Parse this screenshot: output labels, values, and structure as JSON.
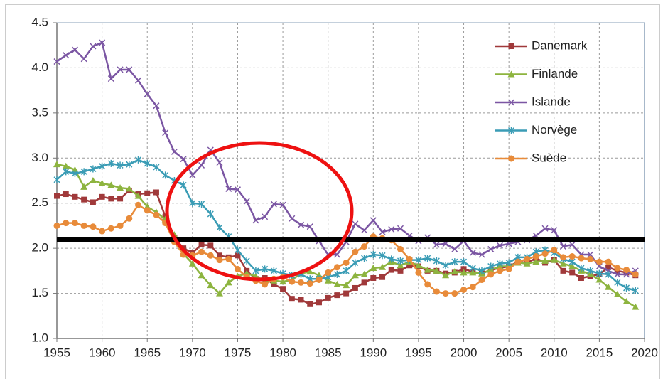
{
  "chart_data": {
    "type": "line",
    "x": [
      1955,
      1956,
      1957,
      1958,
      1959,
      1960,
      1961,
      1962,
      1963,
      1964,
      1965,
      1966,
      1967,
      1968,
      1969,
      1970,
      1971,
      1972,
      1973,
      1974,
      1975,
      1976,
      1977,
      1978,
      1979,
      1980,
      1981,
      1982,
      1983,
      1984,
      1985,
      1986,
      1987,
      1988,
      1989,
      1990,
      1991,
      1992,
      1993,
      1994,
      1995,
      1996,
      1997,
      1998,
      1999,
      2000,
      2001,
      2002,
      2003,
      2004,
      2005,
      2006,
      2007,
      2008,
      2009,
      2010,
      2011,
      2012,
      2013,
      2014,
      2015,
      2016,
      2017,
      2018,
      2019
    ],
    "series": [
      {
        "name": "Danemark",
        "color": "#a0393a",
        "marker": "square",
        "values": [
          2.58,
          2.6,
          2.57,
          2.54,
          2.51,
          2.57,
          2.55,
          2.55,
          2.64,
          2.6,
          2.61,
          2.62,
          2.35,
          2.12,
          2.0,
          1.95,
          2.04,
          2.03,
          1.92,
          1.9,
          1.92,
          1.75,
          1.66,
          1.67,
          1.6,
          1.55,
          1.44,
          1.43,
          1.38,
          1.4,
          1.45,
          1.48,
          1.5,
          1.56,
          1.62,
          1.67,
          1.68,
          1.76,
          1.75,
          1.81,
          1.8,
          1.75,
          1.75,
          1.72,
          1.73,
          1.77,
          1.74,
          1.72,
          1.76,
          1.78,
          1.8,
          1.85,
          1.84,
          1.89,
          1.84,
          1.87,
          1.75,
          1.73,
          1.67,
          1.69,
          1.71,
          1.79,
          1.75,
          1.73,
          1.7
        ]
      },
      {
        "name": "Finlande",
        "color": "#8db43f",
        "marker": "triangle",
        "values": [
          2.93,
          2.91,
          2.87,
          2.68,
          2.75,
          2.72,
          2.7,
          2.67,
          2.66,
          2.58,
          2.46,
          2.4,
          2.32,
          2.15,
          1.94,
          1.83,
          1.7,
          1.59,
          1.5,
          1.62,
          1.69,
          1.72,
          1.69,
          1.64,
          1.64,
          1.63,
          1.65,
          1.72,
          1.74,
          1.7,
          1.64,
          1.6,
          1.59,
          1.7,
          1.71,
          1.78,
          1.79,
          1.85,
          1.81,
          1.85,
          1.81,
          1.76,
          1.75,
          1.7,
          1.74,
          1.73,
          1.73,
          1.72,
          1.76,
          1.8,
          1.8,
          1.84,
          1.83,
          1.85,
          1.86,
          1.87,
          1.83,
          1.8,
          1.75,
          1.71,
          1.65,
          1.57,
          1.49,
          1.41,
          1.35
        ]
      },
      {
        "name": "Islande",
        "color": "#7b56a3",
        "marker": "x",
        "values": [
          4.07,
          4.14,
          4.2,
          4.1,
          4.24,
          4.28,
          3.88,
          3.98,
          3.98,
          3.86,
          3.71,
          3.58,
          3.28,
          3.07,
          2.99,
          2.81,
          2.92,
          3.09,
          2.95,
          2.66,
          2.65,
          2.52,
          2.31,
          2.35,
          2.49,
          2.48,
          2.33,
          2.26,
          2.24,
          2.08,
          1.93,
          1.93,
          2.07,
          2.27,
          2.2,
          2.31,
          2.18,
          2.21,
          2.22,
          2.14,
          2.08,
          2.12,
          2.04,
          2.05,
          1.99,
          2.08,
          1.95,
          1.93,
          1.99,
          2.03,
          2.05,
          2.07,
          2.09,
          2.14,
          2.22,
          2.2,
          2.02,
          2.04,
          1.93,
          1.93,
          1.8,
          1.75,
          1.71,
          1.71,
          1.75
        ]
      },
      {
        "name": "Norvège",
        "color": "#3a9cb5",
        "marker": "star",
        "values": [
          2.76,
          2.85,
          2.83,
          2.85,
          2.88,
          2.91,
          2.94,
          2.92,
          2.93,
          2.98,
          2.94,
          2.9,
          2.81,
          2.75,
          2.7,
          2.5,
          2.49,
          2.38,
          2.23,
          2.13,
          1.98,
          1.86,
          1.75,
          1.77,
          1.75,
          1.72,
          1.7,
          1.71,
          1.66,
          1.66,
          1.68,
          1.71,
          1.75,
          1.84,
          1.89,
          1.93,
          1.92,
          1.88,
          1.86,
          1.87,
          1.87,
          1.89,
          1.86,
          1.81,
          1.85,
          1.85,
          1.78,
          1.75,
          1.8,
          1.83,
          1.84,
          1.9,
          1.9,
          1.96,
          1.98,
          1.95,
          1.88,
          1.85,
          1.78,
          1.75,
          1.72,
          1.71,
          1.62,
          1.56,
          1.53
        ]
      },
      {
        "name": "Suède",
        "color": "#e88b3a",
        "marker": "circle",
        "values": [
          2.25,
          2.28,
          2.28,
          2.25,
          2.24,
          2.19,
          2.22,
          2.25,
          2.33,
          2.48,
          2.42,
          2.37,
          2.28,
          2.07,
          1.93,
          1.92,
          1.96,
          1.92,
          1.87,
          1.88,
          1.77,
          1.68,
          1.64,
          1.6,
          1.66,
          1.68,
          1.63,
          1.62,
          1.61,
          1.65,
          1.73,
          1.79,
          1.84,
          1.96,
          2.02,
          2.13,
          2.11,
          2.09,
          1.99,
          1.88,
          1.73,
          1.6,
          1.52,
          1.5,
          1.5,
          1.54,
          1.57,
          1.65,
          1.71,
          1.75,
          1.77,
          1.85,
          1.88,
          1.91,
          1.94,
          1.98,
          1.9,
          1.91,
          1.89,
          1.88,
          1.85,
          1.85,
          1.78,
          1.76,
          1.71
        ]
      }
    ],
    "reference_line": {
      "value": 2.1,
      "color": "#000000"
    },
    "xlim": [
      1955,
      2020
    ],
    "xticks": [
      1955,
      1960,
      1965,
      1970,
      1975,
      1980,
      1985,
      1990,
      1995,
      2000,
      2005,
      2010,
      2015,
      2020
    ],
    "ylim": [
      1.0,
      4.5
    ],
    "yticks": [
      {
        "value": 1.0,
        "label": "1.0"
      },
      1.5,
      {
        "value": 2.0,
        "label": "2.0"
      },
      2.5,
      {
        "value": 3.0,
        "label": "3.0"
      },
      3.5,
      {
        "value": 4.0,
        "label": "4.0"
      },
      4.5
    ],
    "grid": true,
    "legend": "upper right"
  }
}
